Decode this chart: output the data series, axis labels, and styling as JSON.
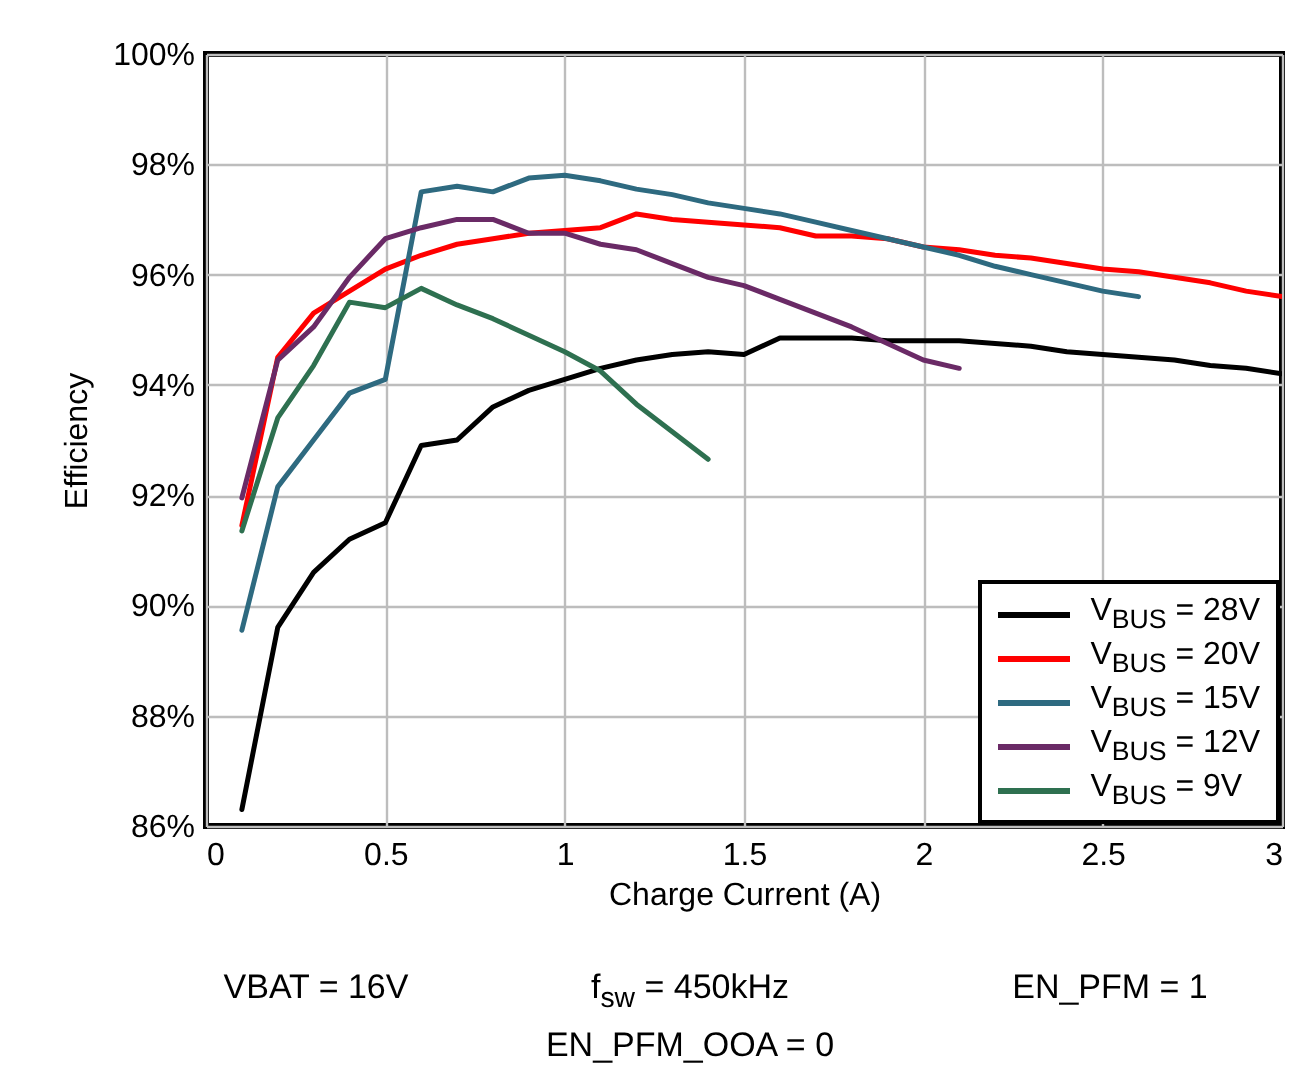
{
  "chart_data": {
    "type": "line",
    "xlabel": "Charge Current (A)",
    "ylabel": "Efficiency",
    "annotations": [
      "VBAT = 16V",
      "f$_{sw}$ = 450kHz",
      "EN_PFM = 1",
      "EN_PFM_OOA = 0"
    ],
    "xlim": [
      0,
      3
    ],
    "xticks": [
      0,
      0.5,
      1,
      1.5,
      2,
      2.5,
      3
    ],
    "ylim": [
      86,
      100
    ],
    "yticks": [
      {
        "value": 86,
        "label": "86%"
      },
      {
        "value": 88,
        "label": "88%"
      },
      {
        "value": 90,
        "label": "90%"
      },
      {
        "value": 92,
        "label": "92%"
      },
      {
        "value": 94,
        "label": "94%"
      },
      {
        "value": 96,
        "label": "96%"
      },
      {
        "value": 98,
        "label": "98%"
      },
      {
        "value": 100,
        "label": "100%"
      }
    ],
    "grid": true,
    "legend": "bottom right",
    "series": [
      {
        "name": "V$_{BUS}$ = 28V",
        "color": "#000000",
        "x": [
          0.1,
          0.2,
          0.3,
          0.4,
          0.5,
          0.6,
          0.7,
          0.8,
          0.9,
          1.0,
          1.1,
          1.2,
          1.3,
          1.4,
          1.5,
          1.6,
          1.7,
          1.8,
          1.9,
          2.0,
          2.1,
          2.2,
          2.3,
          2.4,
          2.5,
          2.6,
          2.7,
          2.8,
          2.9,
          3.0
        ],
        "values": [
          86.3,
          89.6,
          90.6,
          91.2,
          91.5,
          92.9,
          93.0,
          93.6,
          93.9,
          94.1,
          94.3,
          94.45,
          94.55,
          94.6,
          94.55,
          94.85,
          94.85,
          94.85,
          94.8,
          94.8,
          94.8,
          94.75,
          94.7,
          94.6,
          94.55,
          94.5,
          94.45,
          94.35,
          94.3,
          94.2
        ]
      },
      {
        "name": "V$_{BUS}$ = 20V",
        "color": "#ff0000",
        "x": [
          0.1,
          0.2,
          0.3,
          0.4,
          0.5,
          0.6,
          0.7,
          0.8,
          0.9,
          1.0,
          1.1,
          1.2,
          1.3,
          1.4,
          1.5,
          1.6,
          1.7,
          1.8,
          1.9,
          2.0,
          2.1,
          2.2,
          2.3,
          2.4,
          2.5,
          2.6,
          2.7,
          2.8,
          2.9,
          3.0
        ],
        "values": [
          91.45,
          94.5,
          95.3,
          95.7,
          96.1,
          96.35,
          96.55,
          96.65,
          96.75,
          96.8,
          96.85,
          97.1,
          97.0,
          96.95,
          96.9,
          96.85,
          96.7,
          96.7,
          96.65,
          96.5,
          96.45,
          96.35,
          96.3,
          96.2,
          96.1,
          96.05,
          95.95,
          95.85,
          95.7,
          95.6
        ]
      },
      {
        "name": "V$_{BUS}$ = 15V",
        "color": "#2e6a80",
        "x": [
          0.1,
          0.2,
          0.3,
          0.4,
          0.5,
          0.6,
          0.7,
          0.8,
          0.9,
          1.0,
          1.1,
          1.2,
          1.3,
          1.4,
          1.5,
          1.6,
          1.7,
          1.8,
          1.9,
          2.0,
          2.1,
          2.2,
          2.3,
          2.4,
          2.5,
          2.6
        ],
        "values": [
          89.55,
          92.15,
          93.0,
          93.85,
          94.1,
          97.5,
          97.6,
          97.5,
          97.75,
          97.8,
          97.7,
          97.55,
          97.45,
          97.3,
          97.2,
          97.1,
          96.95,
          96.8,
          96.65,
          96.5,
          96.35,
          96.15,
          96.0,
          95.85,
          95.7,
          95.6
        ]
      },
      {
        "name": "V$_{BUS}$ = 12V",
        "color": "#6a2a66",
        "x": [
          0.1,
          0.2,
          0.3,
          0.4,
          0.5,
          0.6,
          0.7,
          0.8,
          0.9,
          1.0,
          1.1,
          1.2,
          1.3,
          1.4,
          1.5,
          1.6,
          1.7,
          1.8,
          1.9,
          2.0,
          2.1
        ],
        "values": [
          91.95,
          94.45,
          95.05,
          95.95,
          96.65,
          96.85,
          97.0,
          97.0,
          96.75,
          96.75,
          96.55,
          96.45,
          96.2,
          95.95,
          95.8,
          95.55,
          95.3,
          95.05,
          94.75,
          94.45,
          94.3
        ]
      },
      {
        "name": "V$_{BUS}$ = 9V",
        "color": "#2e7050",
        "x": [
          0.1,
          0.2,
          0.3,
          0.4,
          0.5,
          0.6,
          0.7,
          0.8,
          0.9,
          1.0,
          1.1,
          1.2,
          1.3,
          1.4
        ],
        "values": [
          91.35,
          93.4,
          94.35,
          95.5,
          95.4,
          95.75,
          95.45,
          95.2,
          94.9,
          94.6,
          94.25,
          93.65,
          93.15,
          92.65
        ]
      }
    ]
  }
}
